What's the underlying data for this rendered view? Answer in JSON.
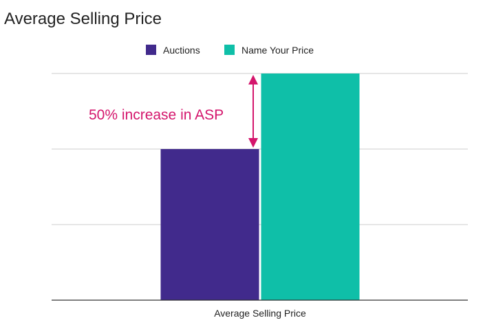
{
  "chart_data": {
    "type": "bar",
    "title": "Average Selling Price",
    "categories": [
      "Average Selling Price"
    ],
    "series": [
      {
        "name": "Auctions",
        "values": [
          1.0
        ],
        "color": "#412a8c"
      },
      {
        "name": "Name Your Price",
        "values": [
          1.5
        ],
        "color": "#0fbfa8"
      }
    ],
    "ylim": [
      0,
      1.5
    ],
    "grid": true,
    "y_tick_labels_shown": false,
    "legend_position": "top",
    "annotation": {
      "text": "50% increase in ASP",
      "color": "#d4156c"
    }
  }
}
